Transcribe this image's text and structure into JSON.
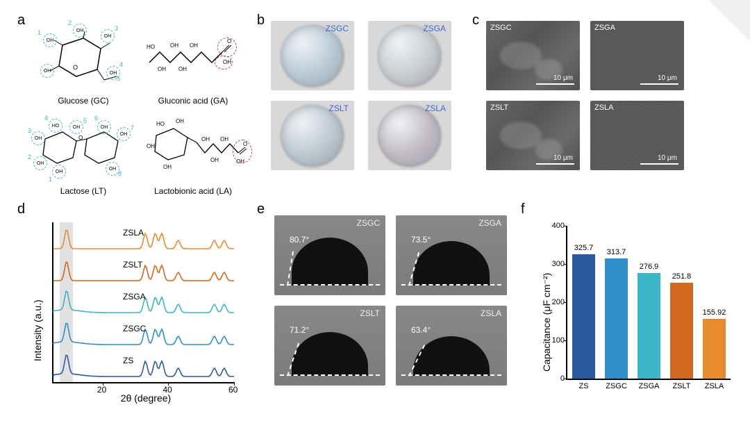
{
  "labels": {
    "a": "a",
    "b": "b",
    "c": "c",
    "d": "d",
    "e": "e",
    "f": "f"
  },
  "panel_a": {
    "mol1": {
      "name": "Glucose (GC)",
      "oh_count": 5,
      "oh_color": "#3cb5c9"
    },
    "mol2": {
      "name": "Gluconic acid (GA)",
      "oh_color": "#3cb5c9",
      "cooh_color": "#c23a3a"
    },
    "mol3": {
      "name": "Lactose (LT)",
      "oh_count": 8,
      "oh_color": "#3cb5c9"
    },
    "mol4": {
      "name": "Lactobionic acid (LA)",
      "oh_color": "#3cb5c9",
      "cooh_color": "#c23a3a"
    }
  },
  "panel_b": {
    "bg_color": "#d8d8d8",
    "label_color": "#3a67d6",
    "items": [
      {
        "label": "ZSGC",
        "disk_color": "#b8c9d4"
      },
      {
        "label": "ZSGA",
        "disk_color": "#c8ccd0"
      },
      {
        "label": "ZSLT",
        "disk_color": "#bcc6cf"
      },
      {
        "label": "ZSLA",
        "disk_color": "#c0b8c2"
      }
    ]
  },
  "panel_c": {
    "scale_label": "10 μm",
    "items": [
      {
        "label": "ZSGC",
        "rough": true
      },
      {
        "label": "ZSGA",
        "rough": false
      },
      {
        "label": "ZSLT",
        "rough": true
      },
      {
        "label": "ZSLA",
        "rough": false
      }
    ]
  },
  "panel_d": {
    "ylabel": "Intensity (a.u.)",
    "xlabel": "2θ (degree)",
    "xmin": 5,
    "xmax": 60,
    "xticks": [
      20,
      40,
      60
    ],
    "highlight_x": [
      7,
      11
    ],
    "highlight_color": "rgba(180,180,180,0.4)",
    "peaks": [
      9,
      33,
      36,
      38,
      43,
      54,
      57
    ],
    "traces": [
      {
        "label": "ZSLA",
        "color": "#e88b2e"
      },
      {
        "label": "ZSLT",
        "color": "#d2691e"
      },
      {
        "label": "ZSGA",
        "color": "#3cb5c9"
      },
      {
        "label": "ZSGC",
        "color": "#2f8fc9"
      },
      {
        "label": "ZS",
        "color": "#2c5aa0"
      }
    ]
  },
  "panel_e": {
    "items": [
      {
        "label": "ZSGC",
        "angle": "80.7°",
        "ca": 80.7
      },
      {
        "label": "ZSGA",
        "angle": "73.5°",
        "ca": 73.5
      },
      {
        "label": "ZSLT",
        "angle": "71.2°",
        "ca": 71.2
      },
      {
        "label": "ZSLA",
        "angle": "63.4°",
        "ca": 63.4
      }
    ]
  },
  "panel_f": {
    "ylabel": "Capacitance (μF cm⁻²)",
    "ylim": [
      0,
      400
    ],
    "ytick_step": 100,
    "bar_width": 0.7,
    "background_color": "#ffffff",
    "categories": [
      "ZS",
      "ZSGC",
      "ZSGA",
      "ZSLT",
      "ZSLA"
    ],
    "values": [
      325.7,
      313.7,
      276.9,
      251.8,
      155.92
    ],
    "colors": [
      "#2c5aa0",
      "#2f8fc9",
      "#3cb5c9",
      "#d2691e",
      "#e88b2e"
    ]
  }
}
